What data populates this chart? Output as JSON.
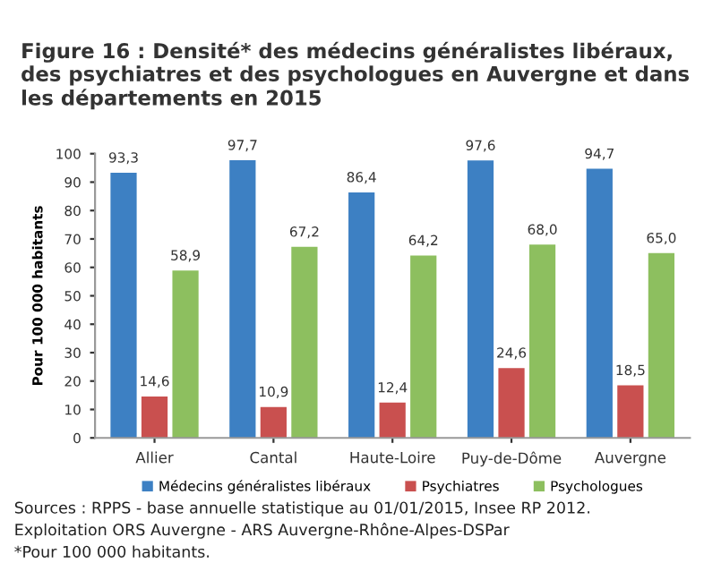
{
  "chart_data": {
    "type": "bar",
    "title": "Figure 16 : Densité* des médecins généralistes libéraux, des psychiatres et des psychologues en Auvergne et dans les départements en 2015",
    "ylabel": "Pour 100 000 habitants",
    "categories": [
      "Allier",
      "Cantal",
      "Haute-Loire",
      "Puy-de-Dôme",
      "Auvergne"
    ],
    "series": [
      {
        "name": "Médecins généralistes libéraux",
        "color": "#3d80c3",
        "values": [
          93.3,
          97.7,
          86.4,
          97.6,
          94.7
        ],
        "value_labels": [
          "93,3",
          "97,7",
          "86,4",
          "97,6",
          "94,7"
        ]
      },
      {
        "name": "Psychiatres",
        "color": "#c9504f",
        "values": [
          14.6,
          10.9,
          12.4,
          24.6,
          18.5
        ],
        "value_labels": [
          "14,6",
          "10,9",
          "12,4",
          "24,6",
          "18,5"
        ]
      },
      {
        "name": "Psychologues",
        "color": "#8dbf5f",
        "values": [
          58.9,
          67.2,
          64.2,
          68.0,
          65.0
        ],
        "value_labels": [
          "58,9",
          "67,2",
          "64,2",
          "68,0",
          "65,0"
        ]
      }
    ],
    "ylim": [
      0,
      100
    ],
    "yticks": [
      0,
      10,
      20,
      30,
      40,
      50,
      60,
      70,
      80,
      90,
      100
    ],
    "grid": false,
    "legend": "bottom",
    "annotations": [
      "Sources : RPPS - base annuelle statistique au 01/01/2015, Insee RP 2012.",
      "Exploitation ORS Auvergne - ARS Auvergne-Rhône-Alpes-DSPar",
      "*Pour 100 000 habitants."
    ]
  }
}
